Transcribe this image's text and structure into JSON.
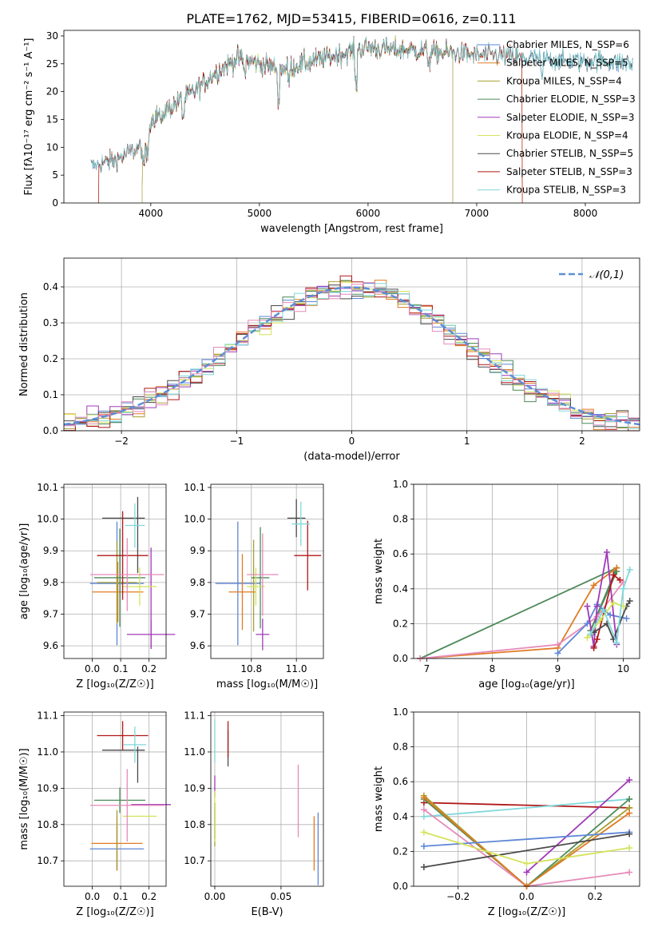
{
  "figure_title": "PLATE=1762, MJD=53415, FIBERID=0616, z=0.111",
  "colors": {
    "blue": "#5e86d6",
    "orange": "#e07b22",
    "olive": "#a8a030",
    "green": "#4f8a5a",
    "purple": "#a03ab8",
    "lime": "#d4e35a",
    "dark": "#4a4a4a",
    "red": "#b01818",
    "cyan": "#7fd8da",
    "pink": "#e58ab9"
  },
  "chart_data": [
    {
      "id": "spectrum",
      "type": "line",
      "title": "PLATE=1762, MJD=53415, FIBERID=0616, z=0.111",
      "xlabel": "wavelength [Angstrom, rest frame]",
      "ylabel": "Flux [fλ10⁻¹⁷ erg cm⁻² s⁻¹ A⁻¹]",
      "xlim": [
        3200,
        8500
      ],
      "ylim": [
        0,
        31
      ],
      "xticks": [
        4000,
        5000,
        6000,
        7000,
        8000
      ],
      "yticks": [
        0,
        5,
        10,
        15,
        20,
        25,
        30
      ],
      "grid": false,
      "legend_position": "upper-right",
      "continuum_x": [
        3450,
        3700,
        3950,
        4000,
        4200,
        4400,
        4600,
        4800,
        5000,
        5200,
        5400,
        5600,
        5800,
        6000,
        6200,
        6400,
        6600,
        6800,
        7000,
        7200,
        7400,
        7600,
        7800,
        8000,
        8200,
        8440
      ],
      "continuum_y": [
        6.5,
        8.0,
        10.5,
        15.0,
        17.5,
        20.0,
        23.5,
        26.0,
        25.0,
        24.0,
        25.0,
        26.0,
        27.0,
        28.0,
        27.5,
        27.5,
        27.0,
        27.0,
        26.5,
        26.5,
        26.0,
        26.0,
        25.5,
        25.5,
        25.5,
        25.0
      ],
      "series": [
        {
          "name": "Chabrier MILES, N_SSP=6",
          "start": 3450,
          "end": 8440
        },
        {
          "name": "Salpeter MILES, N_SSP=5",
          "start": 3520,
          "end": 7420
        },
        {
          "name": "Kroupa MILES, N_SSP=4",
          "start": 3920,
          "end": 6780
        },
        {
          "name": "Chabrier ELODIE, N_SSP=3",
          "start": 3920,
          "end": 6780
        },
        {
          "name": "Salpeter ELODIE, N_SSP=3",
          "start": 3920,
          "end": 6780
        },
        {
          "name": "Kroupa ELODIE, N_SSP=4",
          "start": 3920,
          "end": 6780
        },
        {
          "name": "Chabrier STELIB, N_SSP=5",
          "start": 3450,
          "end": 8440
        },
        {
          "name": "Salpeter STELIB, N_SSP=3",
          "start": 3520,
          "end": 7420
        },
        {
          "name": "Kroupa STELIB, N_SSP=3",
          "start": 3450,
          "end": 8440
        }
      ]
    },
    {
      "id": "residual_hist",
      "type": "histogram",
      "xlabel": "(data-model)/error",
      "ylabel": "Normed distribution",
      "xlim": [
        -2.5,
        2.5
      ],
      "ylim": [
        0,
        0.48
      ],
      "xticks": [
        -2,
        -1,
        0,
        1,
        2
      ],
      "yticks": [
        0.0,
        0.1,
        0.2,
        0.3,
        0.4
      ],
      "grid": true,
      "legend": "𝒩(0,1)",
      "legend_position": "upper-right",
      "bin_width": 0.1
    },
    {
      "id": "age_vs_Z",
      "type": "errorbar",
      "xlabel": "Z [log₁₀(Z/Z☉)]",
      "ylabel": "age  [log₁₀(age/yr)]",
      "xlim": [
        -0.1,
        0.26
      ],
      "ylim": [
        9.56,
        10.11
      ],
      "xticks": [
        0.0,
        0.1,
        0.2
      ],
      "yticks": [
        9.6,
        9.7,
        9.8,
        9.9,
        10.0,
        10.1
      ],
      "grid": true,
      "points": [
        {
          "c": "blue",
          "x": 0.087,
          "y": 9.797,
          "xerr": 0.095,
          "yerr": 0.195
        },
        {
          "c": "orange",
          "x": 0.09,
          "y": 9.77,
          "xerr": 0.09,
          "yerr": 0.095
        },
        {
          "c": "olive",
          "x": 0.087,
          "y": 9.8,
          "xerr": 0.07,
          "yerr": 0.13
        },
        {
          "c": "green",
          "x": 0.097,
          "y": 9.815,
          "xerr": 0.09,
          "yerr": 0.155
        },
        {
          "c": "purple",
          "x": 0.207,
          "y": 9.636,
          "xerr": 0.085,
          "yerr": 0.045
        },
        {
          "c": "purple",
          "x": 0.207,
          "y": 9.75,
          "xerr": 0.0,
          "yerr": 0.16
        },
        {
          "c": "lime",
          "x": 0.167,
          "y": 9.787,
          "xerr": 0.06,
          "yerr": 0.06
        },
        {
          "c": "dark",
          "x": 0.11,
          "y": 10.003,
          "xerr": 0.075,
          "yerr": 0.0
        },
        {
          "c": "dark",
          "x": 0.16,
          "y": 9.95,
          "xerr": 0.0,
          "yerr": 0.12
        },
        {
          "c": "red",
          "x": 0.107,
          "y": 9.885,
          "xerr": 0.09,
          "yerr": 0.14
        },
        {
          "c": "cyan",
          "x": 0.15,
          "y": 9.98,
          "xerr": 0.035,
          "yerr": 0.07
        },
        {
          "c": "pink",
          "x": 0.123,
          "y": 9.825,
          "xerr": 0.13,
          "yerr": 0.115
        }
      ]
    },
    {
      "id": "age_vs_mass",
      "type": "errorbar",
      "xlabel": "mass [log₁₀(M/M☉)]",
      "ylabel": "",
      "xlim": [
        10.62,
        11.12
      ],
      "ylim": [
        9.56,
        10.11
      ],
      "xticks": [
        10.8,
        11.0
      ],
      "yticks": [
        9.6,
        9.7,
        9.8,
        9.9,
        10.0,
        10.1
      ],
      "grid": true,
      "points": [
        {
          "c": "blue",
          "x": 10.74,
          "y": 9.797,
          "xerr": 0.1,
          "yerr": 0.195
        },
        {
          "c": "orange",
          "x": 10.76,
          "y": 9.77,
          "xerr": 0.06,
          "yerr": 0.12
        },
        {
          "c": "olive",
          "x": 10.81,
          "y": 9.79,
          "xerr": 0.0,
          "yerr": 0.145
        },
        {
          "c": "green",
          "x": 10.84,
          "y": 9.815,
          "xerr": 0.04,
          "yerr": 0.16
        },
        {
          "c": "purple",
          "x": 10.85,
          "y": 9.636,
          "xerr": 0.03,
          "yerr": 0.05
        },
        {
          "c": "lime",
          "x": 10.82,
          "y": 9.787,
          "xerr": 0.04,
          "yerr": 0.06
        },
        {
          "c": "dark",
          "x": 11.0,
          "y": 10.003,
          "xerr": 0.04,
          "yerr": 0.06
        },
        {
          "c": "red",
          "x": 11.05,
          "y": 9.885,
          "xerr": 0.06,
          "yerr": 0.11
        },
        {
          "c": "cyan",
          "x": 11.02,
          "y": 9.985,
          "xerr": 0.04,
          "yerr": 0.07
        },
        {
          "c": "pink",
          "x": 10.85,
          "y": 9.825,
          "xerr": 0.07,
          "yerr": 0.13
        }
      ]
    },
    {
      "id": "mass_weight_vs_age",
      "type": "line",
      "xlabel": "age  [log₁₀(age/yr)]",
      "ylabel": "mass weight",
      "xlim": [
        6.8,
        10.25
      ],
      "ylim": [
        0,
        1.0
      ],
      "xticks": [
        7,
        8,
        9,
        10
      ],
      "yticks": [
        0.0,
        0.2,
        0.4,
        0.6,
        0.8,
        1.0
      ],
      "grid": true,
      "series": [
        {
          "c": "green",
          "x": [
            6.9,
            9.9,
            9.5,
            9.9
          ],
          "y": [
            0.0,
            0.52,
            0.16,
            0.5
          ]
        },
        {
          "c": "orange",
          "x": [
            6.9,
            9.0,
            9.55,
            9.9
          ],
          "y": [
            0.0,
            0.06,
            0.42,
            0.52
          ]
        },
        {
          "c": "pink",
          "x": [
            6.9,
            9.0,
            9.6,
            10.0
          ],
          "y": [
            0.0,
            0.08,
            0.24,
            0.44
          ]
        },
        {
          "c": "blue",
          "x": [
            9.0,
            9.45,
            9.6,
            9.8,
            10.05
          ],
          "y": [
            0.03,
            0.2,
            0.31,
            0.25,
            0.23
          ]
        },
        {
          "c": "purple",
          "x": [
            9.45,
            9.55,
            9.6,
            9.75,
            9.9
          ],
          "y": [
            0.3,
            0.07,
            0.3,
            0.61,
            0.08
          ]
        },
        {
          "c": "red",
          "x": [
            9.55,
            9.6,
            9.85,
            9.95
          ],
          "y": [
            0.06,
            0.11,
            0.48,
            0.45
          ]
        },
        {
          "c": "dark",
          "x": [
            9.55,
            9.75,
            9.85,
            10.05,
            10.1
          ],
          "y": [
            0.15,
            0.2,
            0.11,
            0.3,
            0.33
          ]
        },
        {
          "c": "lime",
          "x": [
            9.45,
            9.65,
            9.85,
            10.0
          ],
          "y": [
            0.12,
            0.22,
            0.32,
            0.3
          ]
        },
        {
          "c": "cyan",
          "x": [
            9.5,
            9.7,
            9.9,
            10.0,
            10.1
          ],
          "y": [
            0.14,
            0.28,
            0.09,
            0.4,
            0.51
          ]
        }
      ]
    },
    {
      "id": "mass_vs_Z",
      "type": "errorbar",
      "xlabel": "Z [log₁₀(Z/Z☉)]",
      "ylabel": "mass [log₁₀(M/M☉)]",
      "xlim": [
        -0.1,
        0.26
      ],
      "ylim": [
        10.63,
        11.11
      ],
      "xticks": [
        0.0,
        0.1,
        0.2
      ],
      "yticks": [
        10.7,
        10.8,
        10.9,
        11.0,
        11.1
      ],
      "grid": true,
      "points": [
        {
          "c": "blue",
          "x": 0.087,
          "y": 10.733,
          "xerr": 0.095,
          "yerr": 0.06
        },
        {
          "c": "orange",
          "x": 0.087,
          "y": 10.748,
          "xerr": 0.09,
          "yerr": 0.075
        },
        {
          "c": "olive",
          "x": 0.087,
          "y": 10.76,
          "xerr": 0.0,
          "yerr": 0.08
        },
        {
          "c": "green",
          "x": 0.097,
          "y": 10.867,
          "xerr": 0.09,
          "yerr": 0.035
        },
        {
          "c": "purple",
          "x": 0.207,
          "y": 10.855,
          "xerr": 0.07,
          "yerr": 0.0
        },
        {
          "c": "lime",
          "x": 0.167,
          "y": 10.823,
          "xerr": 0.06,
          "yerr": 0.0
        },
        {
          "c": "dark",
          "x": 0.11,
          "y": 11.005,
          "xerr": 0.075,
          "yerr": 0.0
        },
        {
          "c": "dark",
          "x": 0.16,
          "y": 10.965,
          "xerr": 0.0,
          "yerr": 0.05
        },
        {
          "c": "red",
          "x": 0.107,
          "y": 11.045,
          "xerr": 0.09,
          "yerr": 0.04
        },
        {
          "c": "cyan",
          "x": 0.15,
          "y": 11.02,
          "xerr": 0.04,
          "yerr": 0.05
        },
        {
          "c": "pink",
          "x": 0.123,
          "y": 10.853,
          "xerr": 0.13,
          "yerr": 0.1
        }
      ]
    },
    {
      "id": "mass_vs_ebv",
      "type": "errorbar",
      "xlabel": "E(B-V)",
      "ylabel": "",
      "xlim": [
        -0.003,
        0.082
      ],
      "ylim": [
        10.63,
        11.11
      ],
      "xticks": [
        0.0,
        0.05
      ],
      "yticks": [
        10.7,
        10.8,
        10.9,
        11.0,
        11.1
      ],
      "grid": true,
      "points": [
        {
          "c": "blue",
          "x": 0.078,
          "y": 10.733,
          "xerr": 0,
          "yerr": 0.1
        },
        {
          "c": "orange",
          "x": 0.075,
          "y": 10.748,
          "xerr": 0,
          "yerr": 0.075
        },
        {
          "c": "olive",
          "x": 0.0,
          "y": 10.8,
          "xerr": 0,
          "yerr": 0.06
        },
        {
          "c": "green",
          "x": 0.0,
          "y": 10.81,
          "xerr": 0,
          "yerr": 0.05
        },
        {
          "c": "purple",
          "x": 0.0,
          "y": 10.905,
          "xerr": 0,
          "yerr": 0.03
        },
        {
          "c": "lime",
          "x": 0.0,
          "y": 10.823,
          "xerr": 0,
          "yerr": 0.07
        },
        {
          "c": "dark",
          "x": 0.01,
          "y": 11.01,
          "xerr": 0,
          "yerr": 0.05
        },
        {
          "c": "red",
          "x": 0.01,
          "y": 11.035,
          "xerr": 0,
          "yerr": 0.05
        },
        {
          "c": "cyan",
          "x": 0.0,
          "y": 11.03,
          "xerr": 0,
          "yerr": 0.06
        },
        {
          "c": "pink",
          "x": 0.063,
          "y": 10.865,
          "xerr": 0,
          "yerr": 0.1
        }
      ]
    },
    {
      "id": "mass_weight_vs_Z",
      "type": "line",
      "xlabel": "Z [log₁₀(Z/Z☉)]",
      "ylabel": "mass weight",
      "xlim": [
        -0.33,
        0.33
      ],
      "ylim": [
        0,
        1.0
      ],
      "xticks": [
        -0.2,
        0.0,
        0.2
      ],
      "yticks": [
        0.0,
        0.2,
        0.4,
        0.6,
        0.8,
        1.0
      ],
      "grid": true,
      "series": [
        {
          "c": "red",
          "x": [
            -0.3,
            0.3
          ],
          "y": [
            0.48,
            0.45
          ]
        },
        {
          "c": "cyan",
          "x": [
            -0.3,
            0.3
          ],
          "y": [
            0.4,
            0.5
          ]
        },
        {
          "c": "olive",
          "x": [
            -0.3,
            0.0,
            0.3
          ],
          "y": [
            0.52,
            0.0,
            0.45
          ]
        },
        {
          "c": "green",
          "x": [
            -0.3,
            0.0,
            0.3
          ],
          "y": [
            0.5,
            0.0,
            0.5
          ]
        },
        {
          "c": "pink",
          "x": [
            -0.3,
            0.0,
            0.3
          ],
          "y": [
            0.44,
            0.0,
            0.08
          ]
        },
        {
          "c": "orange",
          "x": [
            -0.3,
            0.0,
            0.3
          ],
          "y": [
            0.51,
            0.0,
            0.42
          ]
        },
        {
          "c": "purple",
          "x": [
            0.0,
            0.3
          ],
          "y": [
            0.08,
            0.61
          ]
        },
        {
          "c": "blue",
          "x": [
            -0.3,
            0.3
          ],
          "y": [
            0.23,
            0.31
          ]
        },
        {
          "c": "dark",
          "x": [
            -0.3,
            0.3
          ],
          "y": [
            0.11,
            0.3
          ]
        },
        {
          "c": "lime",
          "x": [
            -0.3,
            0.0,
            0.3
          ],
          "y": [
            0.31,
            0.13,
            0.22
          ]
        }
      ]
    }
  ]
}
